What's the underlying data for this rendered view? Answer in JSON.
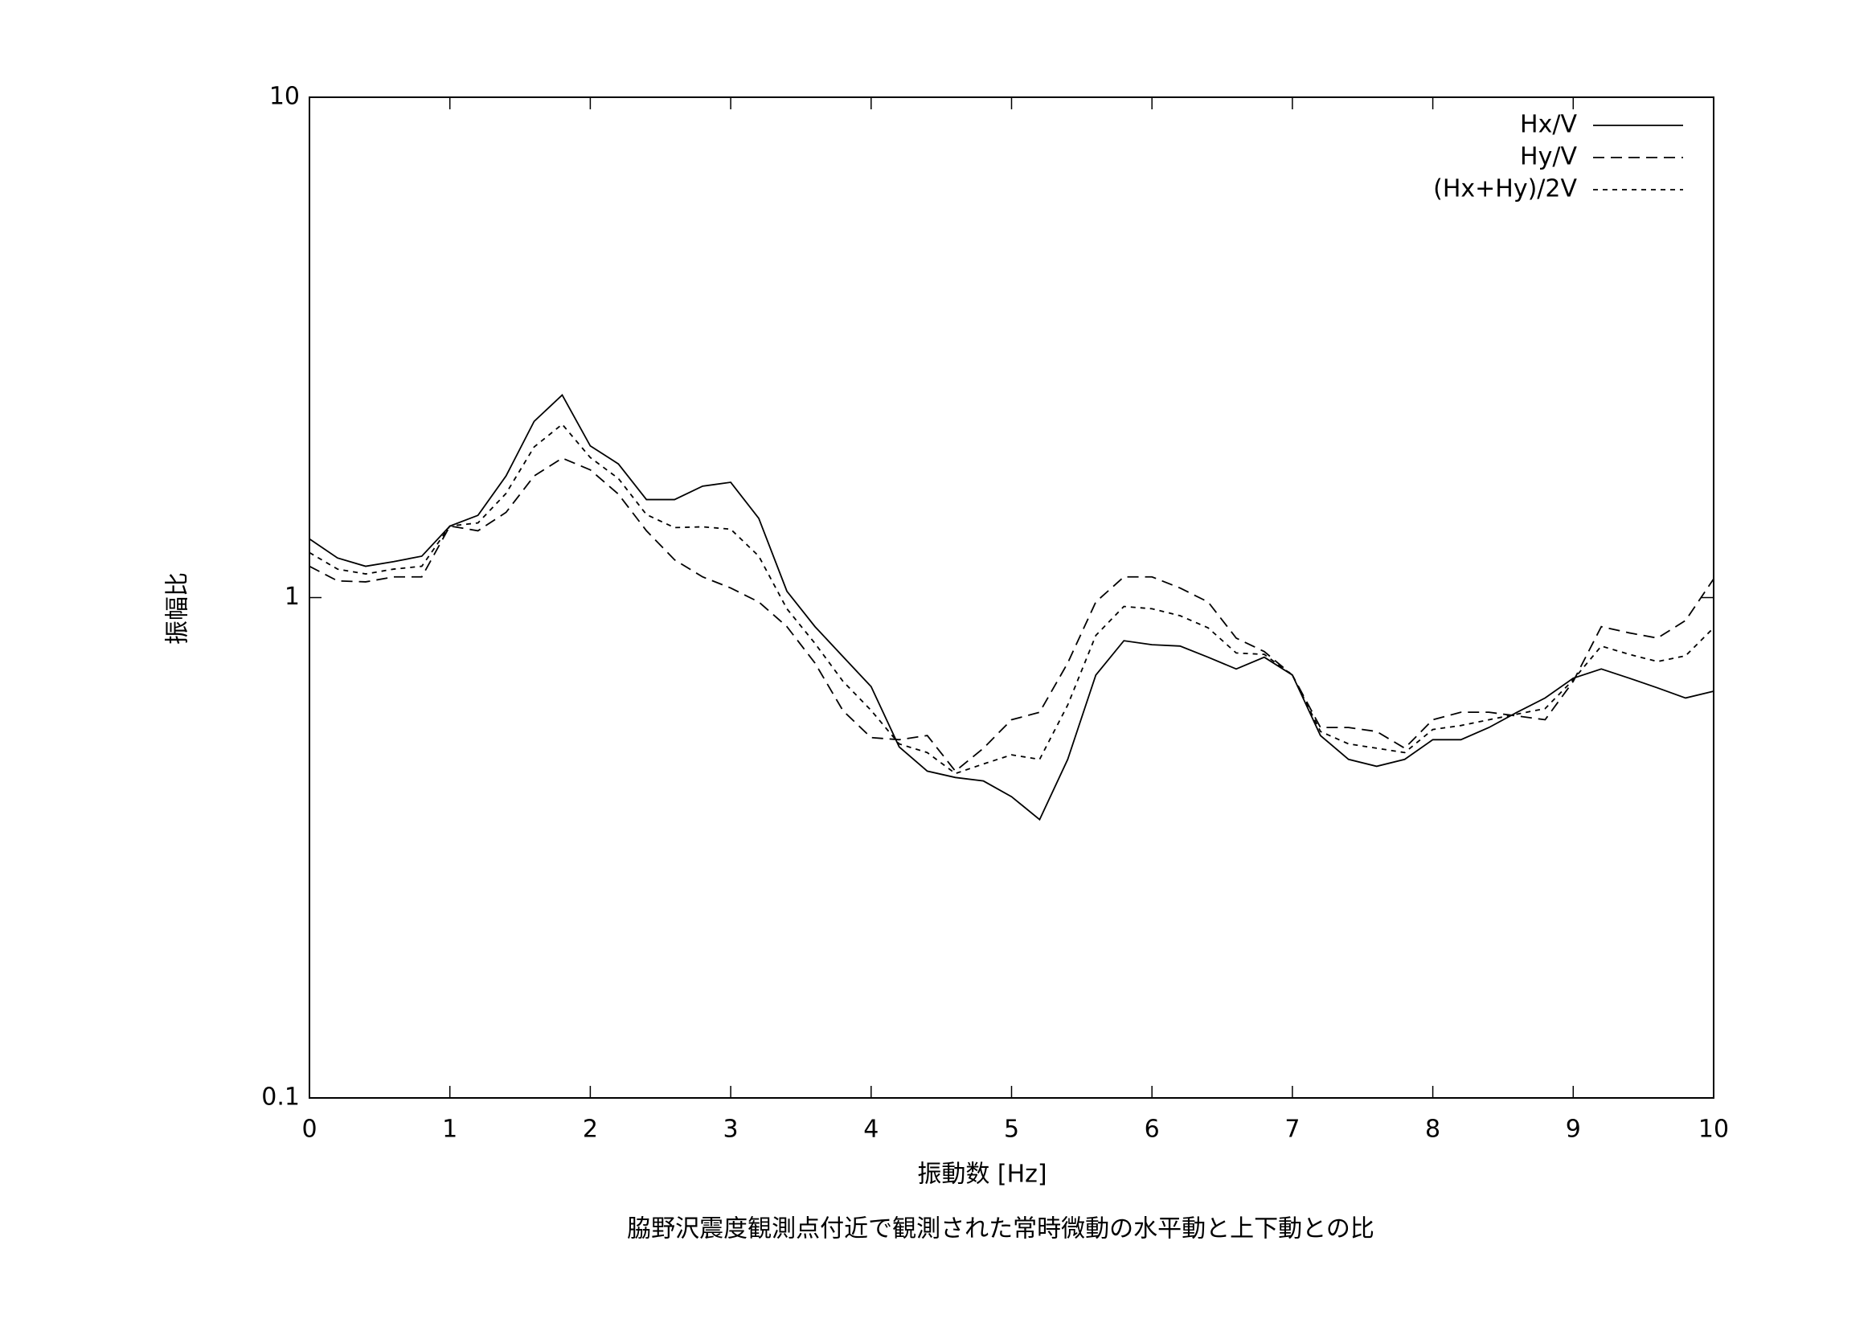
{
  "chart_data": {
    "type": "line",
    "xlabel": "振動数 [Hz]",
    "ylabel": "振幅比",
    "caption": "脇野沢震度観測点付近で観測された常時微動の水平動と上下動との比",
    "x": [
      0,
      0.2,
      0.4,
      0.6,
      0.8,
      1,
      1.2,
      1.4,
      1.6,
      1.8,
      2,
      2.2,
      2.4,
      2.6,
      2.8,
      3,
      3.2,
      3.4,
      3.6,
      3.8,
      4,
      4.2,
      4.4,
      4.6,
      4.8,
      5,
      5.2,
      5.4,
      5.6,
      5.8,
      6,
      6.2,
      6.4,
      6.6,
      6.8,
      7,
      7.2,
      7.4,
      7.6,
      7.8,
      8,
      8.2,
      8.4,
      8.6,
      8.8,
      9,
      9.2,
      9.4,
      9.6,
      9.8,
      10
    ],
    "series": [
      {
        "name": "Hx/V",
        "color": "#000000",
        "dash": "solid",
        "values": [
          1.31,
          1.2,
          1.155,
          1.18,
          1.21,
          1.39,
          1.46,
          1.75,
          2.25,
          2.54,
          2.01,
          1.85,
          1.57,
          1.57,
          1.67,
          1.7,
          1.44,
          1.03,
          0.875,
          0.762,
          0.664,
          0.503,
          0.45,
          0.437,
          0.43,
          0.4,
          0.36,
          0.475,
          0.7,
          0.82,
          0.805,
          0.8,
          0.76,
          0.72,
          0.76,
          0.7,
          0.53,
          0.475,
          0.46,
          0.475,
          0.52,
          0.52,
          0.55,
          0.59,
          0.63,
          0.69,
          0.72,
          0.69,
          0.66,
          0.63,
          0.65
        ]
      },
      {
        "name": "Hy/V",
        "color": "#000000",
        "dash": "dashed",
        "values": [
          1.155,
          1.08,
          1.075,
          1.1,
          1.1,
          1.39,
          1.36,
          1.48,
          1.75,
          1.9,
          1.8,
          1.61,
          1.36,
          1.19,
          1.1,
          1.045,
          0.98,
          0.875,
          0.74,
          0.594,
          0.525,
          0.52,
          0.53,
          0.45,
          0.5,
          0.57,
          0.59,
          0.74,
          0.98,
          1.1,
          1.1,
          1.045,
          0.98,
          0.83,
          0.78,
          0.7,
          0.55,
          0.55,
          0.54,
          0.5,
          0.57,
          0.59,
          0.59,
          0.58,
          0.57,
          0.68,
          0.875,
          0.85,
          0.83,
          0.9,
          1.09
        ]
      },
      {
        "name": "(Hx+Hy)/2V",
        "color": "#000000",
        "dash": "dotted",
        "values": [
          1.23,
          1.14,
          1.115,
          1.14,
          1.155,
          1.39,
          1.41,
          1.615,
          2.0,
          2.22,
          1.905,
          1.73,
          1.465,
          1.38,
          1.385,
          1.37,
          1.21,
          0.95,
          0.81,
          0.68,
          0.595,
          0.51,
          0.49,
          0.445,
          0.465,
          0.485,
          0.475,
          0.61,
          0.84,
          0.96,
          0.95,
          0.92,
          0.87,
          0.775,
          0.77,
          0.7,
          0.54,
          0.51,
          0.5,
          0.49,
          0.545,
          0.555,
          0.57,
          0.585,
          0.6,
          0.685,
          0.8,
          0.77,
          0.745,
          0.765,
          0.87
        ]
      }
    ],
    "xlim": [
      0,
      10
    ],
    "xticks": [
      0,
      1,
      2,
      3,
      4,
      5,
      6,
      7,
      8,
      9,
      10
    ],
    "ylim": [
      0.1,
      10
    ],
    "yticks": [
      0.1,
      1,
      10
    ],
    "ylog": true,
    "grid": false,
    "legend": "top-right"
  }
}
